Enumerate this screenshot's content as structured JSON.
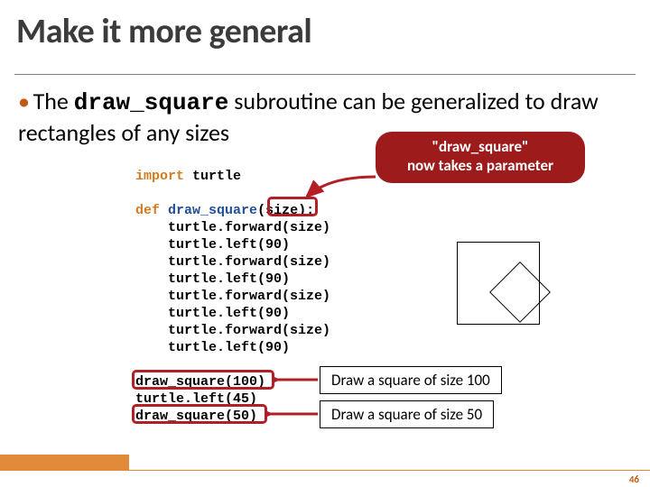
{
  "colors": {
    "title": "#3b3b3b",
    "accent_orange": "#e18b3a",
    "bullet_dot": "#c45911",
    "callout_bg": "#9e1b1b",
    "callout_text": "#ffffff",
    "red_box": "#b21f24",
    "code_keyword_blue": "#1f4e9a",
    "code_keyword_orange": "#d07c1f",
    "rule": "#7f7f7f",
    "pagenum": "#c45911"
  },
  "title": {
    "text": "Make it more general",
    "fontsize": 38
  },
  "bullet": {
    "prefix": "The ",
    "code_name": "draw_square",
    "rest": " subroutine can be generalized to draw rectangles of any sizes"
  },
  "callout": {
    "line1": "\"draw_square\"",
    "line2": "now takes a parameter"
  },
  "code": {
    "lines": [
      {
        "kind": "import",
        "text": "import turtle"
      },
      {
        "kind": "blank",
        "text": ""
      },
      {
        "kind": "def",
        "text": "def draw_square(size):"
      },
      {
        "kind": "body",
        "text": "    turtle.forward(size)"
      },
      {
        "kind": "body",
        "text": "    turtle.left(90)"
      },
      {
        "kind": "body",
        "text": "    turtle.forward(size)"
      },
      {
        "kind": "body",
        "text": "    turtle.left(90)"
      },
      {
        "kind": "body",
        "text": "    turtle.forward(size)"
      },
      {
        "kind": "body",
        "text": "    turtle.left(90)"
      },
      {
        "kind": "body",
        "text": "    turtle.forward(size)"
      },
      {
        "kind": "body",
        "text": "    turtle.left(90)"
      },
      {
        "kind": "blank",
        "text": ""
      },
      {
        "kind": "call",
        "text": "draw_square(100)"
      },
      {
        "kind": "call",
        "text": "turtle.left(45)"
      },
      {
        "kind": "call",
        "text": "draw_square(50)"
      }
    ]
  },
  "labels": {
    "l100": "Draw a square of size 100",
    "l50": "Draw a square of size 50"
  },
  "drawing": {
    "big_size": 92,
    "small_size": 48,
    "small_rotation_deg": 45
  },
  "pagenum": "46"
}
